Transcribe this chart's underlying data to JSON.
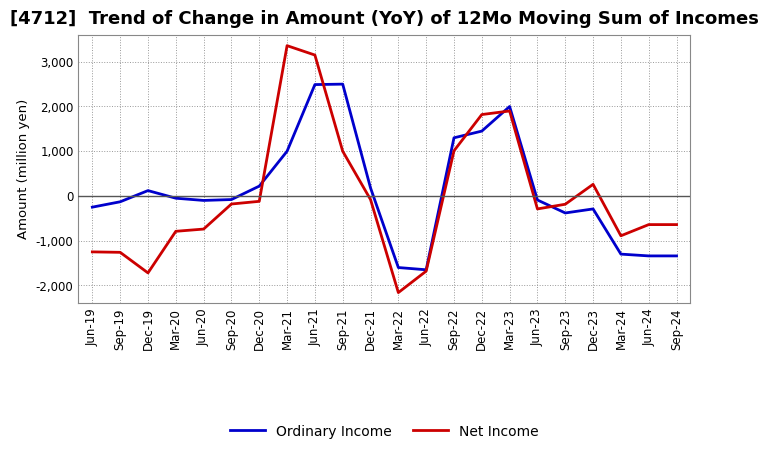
{
  "title": "[4712]  Trend of Change in Amount (YoY) of 12Mo Moving Sum of Incomes",
  "ylabel": "Amount (million yen)",
  "x_labels": [
    "Jun-19",
    "Sep-19",
    "Dec-19",
    "Mar-20",
    "Jun-20",
    "Sep-20",
    "Dec-20",
    "Mar-21",
    "Jun-21",
    "Sep-21",
    "Dec-21",
    "Mar-22",
    "Jun-22",
    "Sep-22",
    "Dec-22",
    "Mar-23",
    "Jun-23",
    "Sep-23",
    "Dec-23",
    "Mar-24",
    "Jun-24",
    "Sep-24"
  ],
  "ordinary_income": [
    -250,
    -130,
    120,
    -50,
    -100,
    -80,
    220,
    1000,
    2490,
    2500,
    180,
    -1600,
    -1650,
    1300,
    1450,
    2000,
    -90,
    -380,
    -290,
    -1300,
    -1340,
    -1340
  ],
  "net_income": [
    -1250,
    -1260,
    -1720,
    -790,
    -740,
    -180,
    -120,
    3360,
    3150,
    1000,
    -80,
    -2160,
    -1680,
    1010,
    1820,
    1900,
    -290,
    -185,
    260,
    -890,
    -640,
    -640
  ],
  "ordinary_income_color": "#0000cc",
  "net_income_color": "#cc0000",
  "legend_ordinary": "Ordinary Income",
  "legend_net": "Net Income",
  "ylim": [
    -2400,
    3600
  ],
  "yticks": [
    -2000,
    -1000,
    0,
    1000,
    2000,
    3000
  ],
  "background_color": "#ffffff",
  "grid_color": "#999999",
  "linewidth": 2.0,
  "title_fontsize": 13,
  "axis_label_fontsize": 9.5,
  "tick_fontsize": 8.5,
  "legend_fontsize": 10
}
